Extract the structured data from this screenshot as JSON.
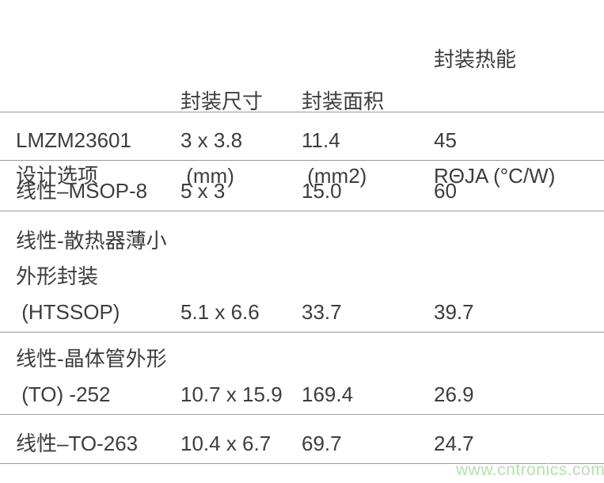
{
  "table": {
    "header": {
      "design_option": "设计选项",
      "package_size_line1": "封装尺寸",
      "package_size_line2": " (mm)",
      "package_area_line1": "封装面积",
      "package_area_line2": " (mm2)",
      "thermal_line1": "封装热能",
      "thermal_line2": "RΘJA (°C/W)"
    },
    "rows": [
      {
        "option": "LMZM23601",
        "size": "3 x 3.8",
        "area": "11.4",
        "rtheta_ja": "45"
      },
      {
        "option": "线性–MSOP-8",
        "size": "5 x 3",
        "area": "15.0",
        "rtheta_ja": "60"
      },
      {
        "option": "线性-散热器薄小\n外形封装\n (HTSSOP)",
        "size": "5.1 x 6.6",
        "area": "33.7",
        "rtheta_ja": "39.7"
      },
      {
        "option": "线性-晶体管外形\n (TO) -252",
        "size": "10.7 x 15.9",
        "area": "169.4",
        "rtheta_ja": "26.9"
      },
      {
        "option": "线性–TO-263",
        "size": "10.4 x 6.7",
        "area": "69.7",
        "rtheta_ja": "24.7"
      }
    ]
  },
  "watermark": "www.cntronics.com",
  "colors": {
    "text": "#3d3d3d",
    "divider_line": "#9a9a9a",
    "watermark_green": "#b5e2aa"
  }
}
